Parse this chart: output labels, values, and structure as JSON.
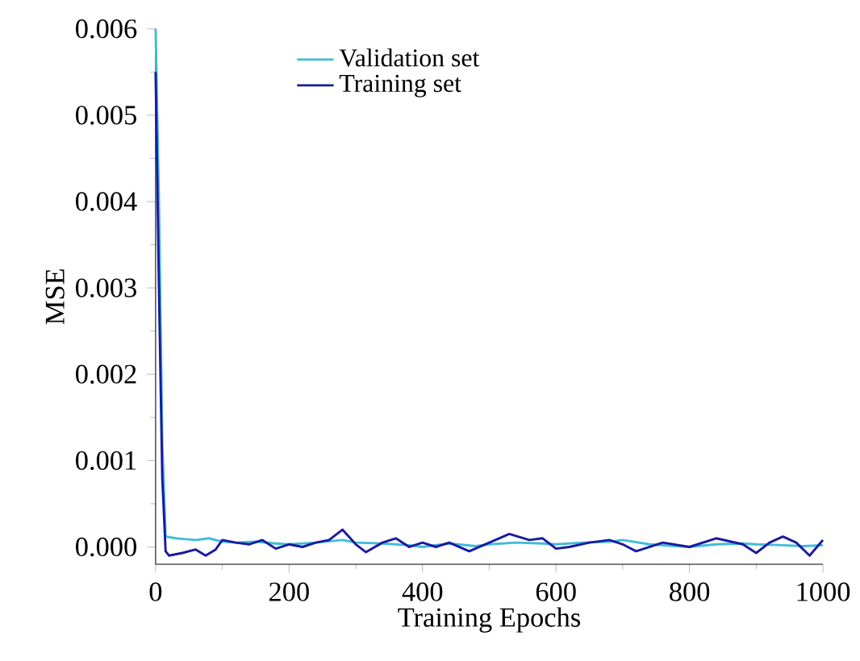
{
  "chart_data": {
    "type": "line",
    "xlabel": "Training Epochs",
    "ylabel": "MSE",
    "xlim": [
      0,
      1000
    ],
    "ylim": [
      -0.0002,
      0.006
    ],
    "xticks": [
      0,
      200,
      400,
      600,
      800,
      1000
    ],
    "yticks": [
      {
        "value": 0,
        "label": "0.000"
      },
      {
        "value": 0.001,
        "label": "0.001"
      },
      {
        "value": 0.002,
        "label": "0.002"
      },
      {
        "value": 0.003,
        "label": "0.003"
      },
      {
        "value": 0.004,
        "label": "0.004"
      },
      {
        "value": 0.005,
        "label": "0.005"
      },
      {
        "value": 0.006,
        "label": "0.006"
      }
    ],
    "legend": "top",
    "grid": false,
    "marker": "none",
    "line_style": "solid",
    "series": [
      {
        "name": "Validation set",
        "color": "#40bcd8",
        "x": [
          0,
          5,
          10,
          15,
          30,
          45,
          60,
          80,
          100,
          120,
          150,
          180,
          200,
          240,
          280,
          300,
          340,
          380,
          400,
          440,
          480,
          500,
          540,
          580,
          600,
          640,
          680,
          700,
          740,
          780,
          800,
          840,
          880,
          900,
          940,
          970,
          1000
        ],
        "values": [
          0.006,
          0.004,
          0.0012,
          0.00012,
          0.0001,
          9e-05,
          8e-05,
          0.0001,
          6e-05,
          5e-05,
          6e-05,
          4e-05,
          3e-05,
          5e-05,
          8e-05,
          5e-05,
          4e-05,
          2e-05,
          0.0,
          4e-05,
          1e-05,
          3e-05,
          5e-05,
          4e-05,
          3e-05,
          5e-05,
          6e-05,
          8e-05,
          3e-05,
          1e-05,
          0.0,
          3e-05,
          4e-05,
          3e-05,
          2e-05,
          1e-05,
          2e-05
        ]
      },
      {
        "name": "Training set",
        "color": "#1a1aa0",
        "x": [
          0,
          5,
          10,
          15,
          20,
          40,
          60,
          75,
          90,
          100,
          120,
          140,
          160,
          180,
          200,
          220,
          240,
          260,
          280,
          300,
          315,
          340,
          360,
          380,
          400,
          420,
          440,
          470,
          500,
          530,
          560,
          580,
          600,
          620,
          650,
          680,
          700,
          720,
          760,
          800,
          840,
          880,
          900,
          920,
          940,
          960,
          980,
          1000
        ],
        "values": [
          0.0055,
          0.003,
          0.0008,
          -5e-05,
          -0.0001,
          -7e-05,
          -3e-05,
          -0.0001,
          -3e-05,
          8e-05,
          5e-05,
          3e-05,
          8e-05,
          -2e-05,
          3e-05,
          0.0,
          5e-05,
          8e-05,
          0.0002,
          3e-05,
          -6e-05,
          5e-05,
          0.0001,
          0.0,
          5e-05,
          0.0,
          5e-05,
          -5e-05,
          5e-05,
          0.00015,
          8e-05,
          0.0001,
          -2e-05,
          0.0,
          5e-05,
          8e-05,
          3e-05,
          -5e-05,
          5e-05,
          0.0,
          0.0001,
          3e-05,
          -7e-05,
          5e-05,
          0.00012,
          5e-05,
          -0.0001,
          8e-05
        ]
      }
    ]
  }
}
